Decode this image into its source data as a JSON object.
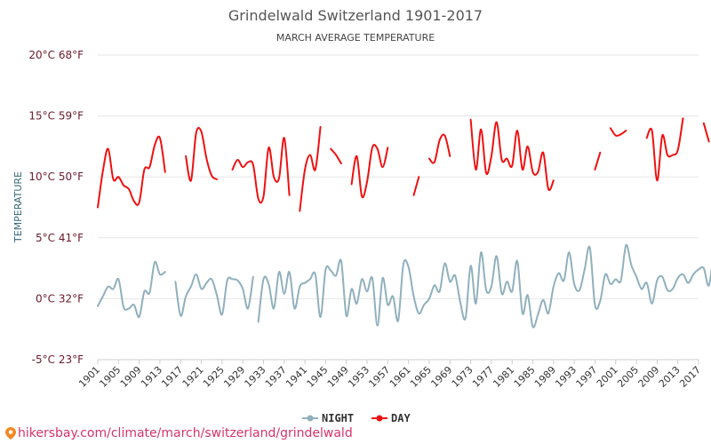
{
  "chart_data": {
    "type": "line",
    "title": "Grindelwald Switzerland 1901-2017",
    "subtitle": "MARCH AVERAGE TEMPERATURE",
    "ylabel": "TEMPERATURE",
    "ylim": [
      -5,
      20
    ],
    "xlim": [
      1901,
      2017
    ],
    "yticks": [
      {
        "value": 20,
        "label": "20°C 68°F"
      },
      {
        "value": 15,
        "label": "15°C 59°F"
      },
      {
        "value": 10,
        "label": "10°C 50°F"
      },
      {
        "value": 5,
        "label": "5°C 41°F"
      },
      {
        "value": 0,
        "label": "0°C 32°F"
      },
      {
        "value": -5,
        "label": "-5°C 23°F"
      }
    ],
    "xticks": [
      1901,
      1905,
      1909,
      1913,
      1917,
      1921,
      1925,
      1929,
      1933,
      1937,
      1941,
      1945,
      1949,
      1953,
      1957,
      1961,
      1965,
      1969,
      1973,
      1977,
      1981,
      1985,
      1989,
      1993,
      1997,
      2001,
      2005,
      2009,
      2013,
      2017
    ],
    "legend": {
      "position": "bottom-center",
      "night_label": "NIGHT",
      "day_label": "DAY"
    },
    "series": [
      {
        "name": "NIGHT",
        "color": "#90b0bd",
        "segments": [
          [
            [
              1901,
              -0.6
            ],
            [
              1902,
              0.2
            ],
            [
              1903,
              1.0
            ],
            [
              1904,
              0.8
            ],
            [
              1905,
              1.6
            ],
            [
              1906,
              -0.7
            ],
            [
              1907,
              -0.8
            ],
            [
              1908,
              -0.5
            ],
            [
              1909,
              -1.5
            ],
            [
              1910,
              0.6
            ],
            [
              1911,
              0.5
            ],
            [
              1912,
              3.0
            ],
            [
              1913,
              2.0
            ],
            [
              1914,
              2.2
            ]
          ],
          [
            [
              1916,
              1.4
            ],
            [
              1917,
              -1.4
            ],
            [
              1918,
              0.2
            ],
            [
              1919,
              1.0
            ],
            [
              1920,
              2.0
            ],
            [
              1921,
              0.8
            ],
            [
              1922,
              1.3
            ],
            [
              1923,
              1.6
            ],
            [
              1924,
              0.3
            ],
            [
              1925,
              -1.3
            ],
            [
              1926,
              1.5
            ],
            [
              1927,
              1.6
            ],
            [
              1928,
              1.5
            ],
            [
              1929,
              0.8
            ],
            [
              1930,
              -0.8
            ],
            [
              1931,
              1.8
            ]
          ],
          [
            [
              1932,
              -1.9
            ],
            [
              1933,
              1.6
            ],
            [
              1934,
              1.2
            ],
            [
              1935,
              -0.8
            ],
            [
              1936,
              2.2
            ],
            [
              1937,
              0.4
            ],
            [
              1938,
              2.2
            ],
            [
              1939,
              -0.8
            ],
            [
              1940,
              1.0
            ],
            [
              1941,
              1.3
            ],
            [
              1942,
              1.6
            ],
            [
              1943,
              2.0
            ],
            [
              1944,
              -1.5
            ],
            [
              1945,
              2.4
            ],
            [
              1946,
              2.3
            ],
            [
              1947,
              1.9
            ],
            [
              1948,
              3.1
            ],
            [
              1949,
              -1.4
            ],
            [
              1950,
              0.8
            ],
            [
              1951,
              -0.4
            ],
            [
              1952,
              1.6
            ],
            [
              1953,
              0.6
            ],
            [
              1954,
              1.7
            ],
            [
              1955,
              -2.2
            ],
            [
              1956,
              1.7
            ],
            [
              1957,
              -0.5
            ],
            [
              1958,
              0.2
            ],
            [
              1959,
              -1.8
            ],
            [
              1960,
              2.8
            ],
            [
              1961,
              2.6
            ],
            [
              1962,
              0.2
            ],
            [
              1963,
              -1.2
            ],
            [
              1964,
              -0.5
            ],
            [
              1965,
              0.0
            ],
            [
              1966,
              1.1
            ],
            [
              1967,
              0.6
            ],
            [
              1968,
              2.9
            ],
            [
              1969,
              1.4
            ],
            [
              1970,
              1.9
            ],
            [
              1971,
              -0.3
            ],
            [
              1972,
              -1.6
            ],
            [
              1973,
              2.7
            ],
            [
              1974,
              -0.4
            ],
            [
              1975,
              3.8
            ],
            [
              1976,
              0.7
            ],
            [
              1977,
              1.0
            ],
            [
              1978,
              3.5
            ],
            [
              1979,
              0.4
            ],
            [
              1980,
              1.4
            ],
            [
              1981,
              0.6
            ],
            [
              1982,
              3.1
            ],
            [
              1983,
              -1.2
            ],
            [
              1984,
              0.3
            ],
            [
              1985,
              -2.3
            ],
            [
              1986,
              -1.3
            ],
            [
              1987,
              -0.1
            ],
            [
              1988,
              -1.2
            ],
            [
              1989,
              1.0
            ],
            [
              1990,
              2.1
            ],
            [
              1991,
              1.5
            ],
            [
              1992,
              3.8
            ],
            [
              1993,
              1.2
            ],
            [
              1994,
              0.7
            ],
            [
              1995,
              2.4
            ],
            [
              1996,
              4.2
            ],
            [
              1997,
              -0.5
            ],
            [
              1998,
              -0.2
            ],
            [
              1999,
              2.0
            ],
            [
              2000,
              1.2
            ],
            [
              2001,
              1.6
            ],
            [
              2002,
              1.5
            ],
            [
              2003,
              4.4
            ],
            [
              2004,
              2.8
            ],
            [
              2005,
              1.8
            ],
            [
              2006,
              0.8
            ],
            [
              2007,
              1.3
            ],
            [
              2008,
              -0.4
            ],
            [
              2009,
              1.5
            ],
            [
              2010,
              1.8
            ],
            [
              2011,
              0.7
            ],
            [
              2012,
              0.8
            ],
            [
              2013,
              1.7
            ],
            [
              2014,
              2.0
            ],
            [
              2015,
              1.3
            ],
            [
              2016,
              2.0
            ],
            [
              2017,
              2.4
            ],
            [
              2018,
              2.5
            ],
            [
              2019,
              1.1
            ],
            [
              2020,
              4.2
            ]
          ]
        ]
      },
      {
        "name": "DAY",
        "color": "#ee1111",
        "segments": [
          [
            [
              1901,
              7.5
            ],
            [
              1902,
              10.5
            ],
            [
              1903,
              12.3
            ],
            [
              1904,
              9.8
            ],
            [
              1905,
              10.0
            ],
            [
              1906,
              9.3
            ],
            [
              1907,
              9.0
            ],
            [
              1908,
              8.0
            ],
            [
              1909,
              7.9
            ],
            [
              1910,
              10.6
            ],
            [
              1911,
              10.8
            ],
            [
              1912,
              12.6
            ],
            [
              1913,
              13.2
            ],
            [
              1914,
              10.4
            ]
          ],
          [
            [
              1918,
              11.7
            ],
            [
              1919,
              9.7
            ],
            [
              1920,
              13.6
            ],
            [
              1921,
              13.7
            ],
            [
              1922,
              11.5
            ],
            [
              1923,
              10.1
            ],
            [
              1924,
              9.8
            ]
          ],
          [
            [
              1927,
              10.6
            ],
            [
              1928,
              11.4
            ],
            [
              1929,
              10.8
            ],
            [
              1930,
              11.2
            ],
            [
              1931,
              11.0
            ],
            [
              1932,
              8.2
            ],
            [
              1933,
              8.4
            ],
            [
              1934,
              12.4
            ],
            [
              1935,
              10.0
            ],
            [
              1936,
              9.9
            ],
            [
              1937,
              13.2
            ],
            [
              1938,
              8.5
            ]
          ],
          [
            [
              1940,
              7.2
            ],
            [
              1941,
              10.6
            ],
            [
              1942,
              11.8
            ],
            [
              1943,
              10.6
            ],
            [
              1944,
              14.1
            ]
          ],
          [
            [
              1946,
              12.3
            ],
            [
              1947,
              11.8
            ],
            [
              1948,
              11.1
            ]
          ],
          [
            [
              1950,
              9.4
            ],
            [
              1951,
              11.7
            ],
            [
              1952,
              8.4
            ],
            [
              1953,
              9.6
            ],
            [
              1954,
              12.4
            ],
            [
              1955,
              12.3
            ],
            [
              1956,
              10.8
            ],
            [
              1957,
              12.4
            ]
          ],
          [
            [
              1962,
              8.5
            ],
            [
              1963,
              10.0
            ]
          ],
          [
            [
              1965,
              11.5
            ],
            [
              1966,
              11.2
            ],
            [
              1967,
              13.0
            ],
            [
              1968,
              13.4
            ],
            [
              1969,
              11.7
            ]
          ],
          [
            [
              1973,
              14.7
            ],
            [
              1974,
              10.6
            ],
            [
              1975,
              13.9
            ],
            [
              1976,
              10.3
            ],
            [
              1977,
              11.7
            ],
            [
              1978,
              14.5
            ],
            [
              1979,
              11.4
            ],
            [
              1980,
              11.5
            ],
            [
              1981,
              10.9
            ],
            [
              1982,
              13.8
            ],
            [
              1983,
              10.6
            ],
            [
              1984,
              12.5
            ],
            [
              1985,
              10.4
            ],
            [
              1986,
              10.4
            ],
            [
              1987,
              12.0
            ],
            [
              1988,
              9.0
            ],
            [
              1989,
              9.7
            ]
          ],
          [
            [
              1997,
              10.6
            ],
            [
              1998,
              12.0
            ]
          ],
          [
            [
              2000,
              14.0
            ],
            [
              2001,
              13.4
            ],
            [
              2002,
              13.5
            ],
            [
              2003,
              13.8
            ]
          ],
          [
            [
              2007,
              13.2
            ],
            [
              2008,
              13.8
            ],
            [
              2009,
              9.7
            ],
            [
              2010,
              13.4
            ],
            [
              2011,
              11.8
            ],
            [
              2012,
              11.8
            ],
            [
              2013,
              12.2
            ],
            [
              2014,
              14.8
            ]
          ],
          [
            [
              2018,
              14.4
            ],
            [
              2019,
              12.9
            ]
          ]
        ]
      }
    ]
  },
  "watermark": {
    "text": "hikersbay.com/climate/march/switzerland/grindelwald"
  }
}
